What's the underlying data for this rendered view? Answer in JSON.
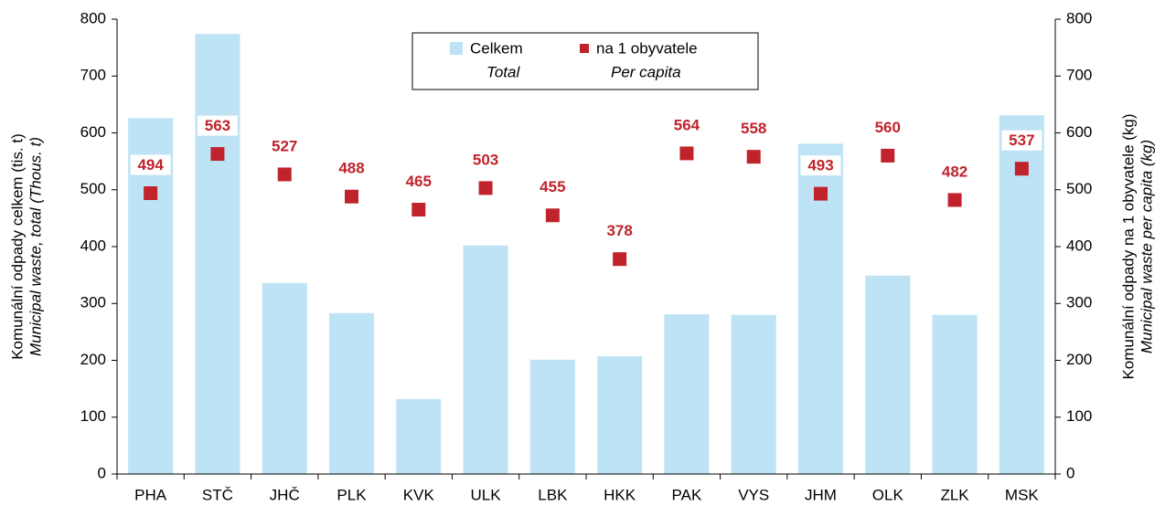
{
  "chart_data": {
    "type": "bar",
    "categories": [
      "PHA",
      "STČ",
      "JHČ",
      "PLK",
      "KVK",
      "ULK",
      "LBK",
      "HKK",
      "PAK",
      "VYS",
      "JHM",
      "OLK",
      "ZLK",
      "MSK"
    ],
    "series": [
      {
        "name": "Celkem",
        "name_en": "Total",
        "type": "bar",
        "color": "#bde3f5",
        "values": [
          626,
          774,
          336,
          283,
          132,
          402,
          201,
          207,
          281,
          280,
          581,
          349,
          280,
          631
        ]
      },
      {
        "name": "na 1 obyvatele",
        "name_en": "Per capita",
        "type": "scatter",
        "axis": "y2",
        "color": "#c0232b",
        "values": [
          494,
          563,
          527,
          488,
          465,
          503,
          455,
          378,
          564,
          558,
          493,
          560,
          482,
          537
        ]
      }
    ],
    "ylabel": [
      "Komunální odpady celkem (tis. t)",
      "Municipal waste, total (Thous. t)"
    ],
    "y2label": [
      "Komunální odpady na 1 obyvatele (kg)",
      "Municipal waste per capita (kg)"
    ],
    "ylim": [
      0,
      800
    ],
    "yticks": [
      0,
      100,
      200,
      300,
      400,
      500,
      600,
      700,
      800
    ],
    "y2lim": [
      0,
      800
    ],
    "y2ticks": [
      0,
      100,
      200,
      300,
      400,
      500,
      600,
      700,
      800
    ],
    "legend": "top"
  }
}
